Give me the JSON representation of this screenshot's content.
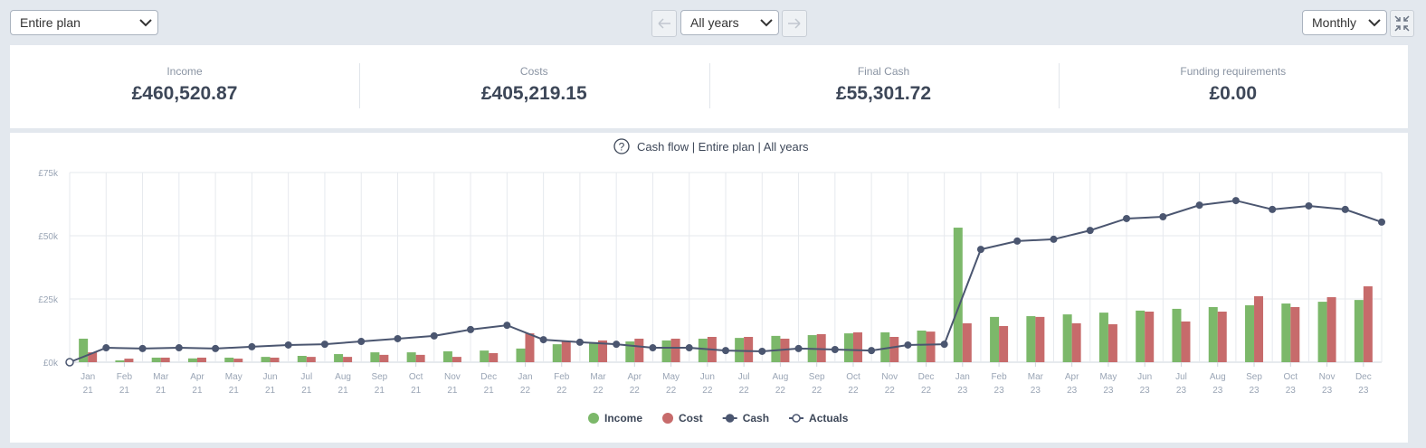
{
  "toolbar": {
    "plan": "Entire plan",
    "years": "All years",
    "period": "Monthly"
  },
  "summary": [
    {
      "label": "Income",
      "value": "£460,520.87"
    },
    {
      "label": "Costs",
      "value": "£405,219.15"
    },
    {
      "label": "Final Cash",
      "value": "£55,301.72"
    },
    {
      "label": "Funding requirements",
      "value": "£0.00"
    }
  ],
  "chart_help": "?",
  "chart_data": {
    "type": "bar",
    "title": "Cash flow | Entire plan | All years",
    "categories": [
      [
        "Jan",
        "21"
      ],
      [
        "Feb",
        "21"
      ],
      [
        "Mar",
        "21"
      ],
      [
        "Apr",
        "21"
      ],
      [
        "May",
        "21"
      ],
      [
        "Jun",
        "21"
      ],
      [
        "Jul",
        "21"
      ],
      [
        "Aug",
        "21"
      ],
      [
        "Sep",
        "21"
      ],
      [
        "Oct",
        "21"
      ],
      [
        "Nov",
        "21"
      ],
      [
        "Dec",
        "21"
      ],
      [
        "Jan",
        "22"
      ],
      [
        "Feb",
        "22"
      ],
      [
        "Mar",
        "22"
      ],
      [
        "Apr",
        "22"
      ],
      [
        "May",
        "22"
      ],
      [
        "Jun",
        "22"
      ],
      [
        "Jul",
        "22"
      ],
      [
        "Aug",
        "22"
      ],
      [
        "Sep",
        "22"
      ],
      [
        "Oct",
        "22"
      ],
      [
        "Nov",
        "22"
      ],
      [
        "Dec",
        "22"
      ],
      [
        "Jan",
        "23"
      ],
      [
        "Feb",
        "23"
      ],
      [
        "Mar",
        "23"
      ],
      [
        "Apr",
        "23"
      ],
      [
        "May",
        "23"
      ],
      [
        "Jun",
        "23"
      ],
      [
        "Jul",
        "23"
      ],
      [
        "Aug",
        "23"
      ],
      [
        "Sep",
        "23"
      ],
      [
        "Oct",
        "23"
      ],
      [
        "Nov",
        "23"
      ],
      [
        "Dec",
        "23"
      ]
    ],
    "ylim": [
      0,
      75000
    ],
    "yticks": [
      {
        "value": 0,
        "label": "£0k"
      },
      {
        "value": 25000,
        "label": "£25k"
      },
      {
        "value": 50000,
        "label": "£50k"
      },
      {
        "value": 75000,
        "label": "£75k"
      }
    ],
    "grid": true,
    "series": [
      {
        "name": "Income",
        "type": "bar",
        "color": "#7cb86a",
        "values": [
          9300,
          700,
          1800,
          1500,
          1800,
          2100,
          2500,
          3200,
          3900,
          3900,
          4300,
          4600,
          5400,
          7100,
          7900,
          8200,
          8600,
          9300,
          9600,
          10400,
          10700,
          11400,
          11800,
          12500,
          53200,
          17900,
          18200,
          18900,
          19600,
          20400,
          21100,
          21800,
          22500,
          23200,
          23900,
          24600
        ]
      },
      {
        "name": "Cost",
        "type": "bar",
        "color": "#c76b6b",
        "values": [
          3900,
          1400,
          1800,
          1800,
          1400,
          1800,
          2100,
          2100,
          2900,
          2900,
          2100,
          3600,
          11400,
          8200,
          8600,
          9300,
          9300,
          10000,
          10000,
          9300,
          11100,
          11800,
          10000,
          12100,
          15400,
          14300,
          17900,
          15400,
          15000,
          20000,
          16100,
          20000,
          26100,
          21800,
          25700,
          30000
        ]
      },
      {
        "name": "Cash",
        "type": "line",
        "color": "#4b5670",
        "values": [
          5700,
          5400,
          5700,
          5400,
          6100,
          6800,
          7100,
          8200,
          9300,
          10400,
          12900,
          14600,
          8900,
          7900,
          7100,
          5700,
          5700,
          4600,
          4300,
          5400,
          5000,
          4600,
          6800,
          7100,
          44600,
          47900,
          48600,
          52100,
          56800,
          57500,
          62100,
          63900,
          60400,
          61800,
          60400,
          55400
        ]
      },
      {
        "name": "Actuals",
        "type": "scatter",
        "color": "#4b5670",
        "values": [
          0,
          null,
          null,
          null,
          null,
          null,
          null,
          null,
          null,
          null,
          null,
          null,
          null,
          null,
          null,
          null,
          null,
          null,
          null,
          null,
          null,
          null,
          null,
          null,
          null,
          null,
          null,
          null,
          null,
          null,
          null,
          null,
          null,
          null,
          null,
          null
        ]
      }
    ]
  }
}
